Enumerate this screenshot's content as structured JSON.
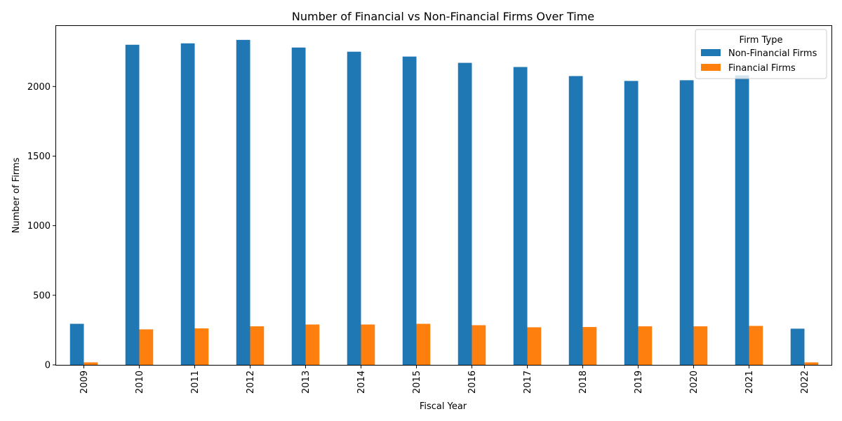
{
  "chart_data": {
    "type": "bar",
    "title": "Number of Financial vs Non-Financial Firms Over Time",
    "xlabel": "Fiscal Year",
    "ylabel": "Number of Firms",
    "categories": [
      "2009",
      "2010",
      "2011",
      "2012",
      "2013",
      "2014",
      "2015",
      "2016",
      "2017",
      "2018",
      "2019",
      "2020",
      "2021",
      "2022"
    ],
    "series": [
      {
        "name": "Non-Financial Firms",
        "color": "#1f77b4",
        "values": [
          295,
          2300,
          2310,
          2335,
          2280,
          2250,
          2215,
          2170,
          2140,
          2075,
          2040,
          2045,
          2080,
          260
        ]
      },
      {
        "name": "Financial Firms",
        "color": "#ff7f0e",
        "values": [
          18,
          255,
          262,
          277,
          290,
          290,
          295,
          285,
          270,
          272,
          277,
          277,
          280,
          18
        ]
      }
    ],
    "yticks": [
      0,
      500,
      1000,
      1500,
      2000
    ],
    "ylim": [
      0,
      2440
    ],
    "grid": false,
    "legend": {
      "title": "Firm Type",
      "position": "top-right"
    }
  }
}
